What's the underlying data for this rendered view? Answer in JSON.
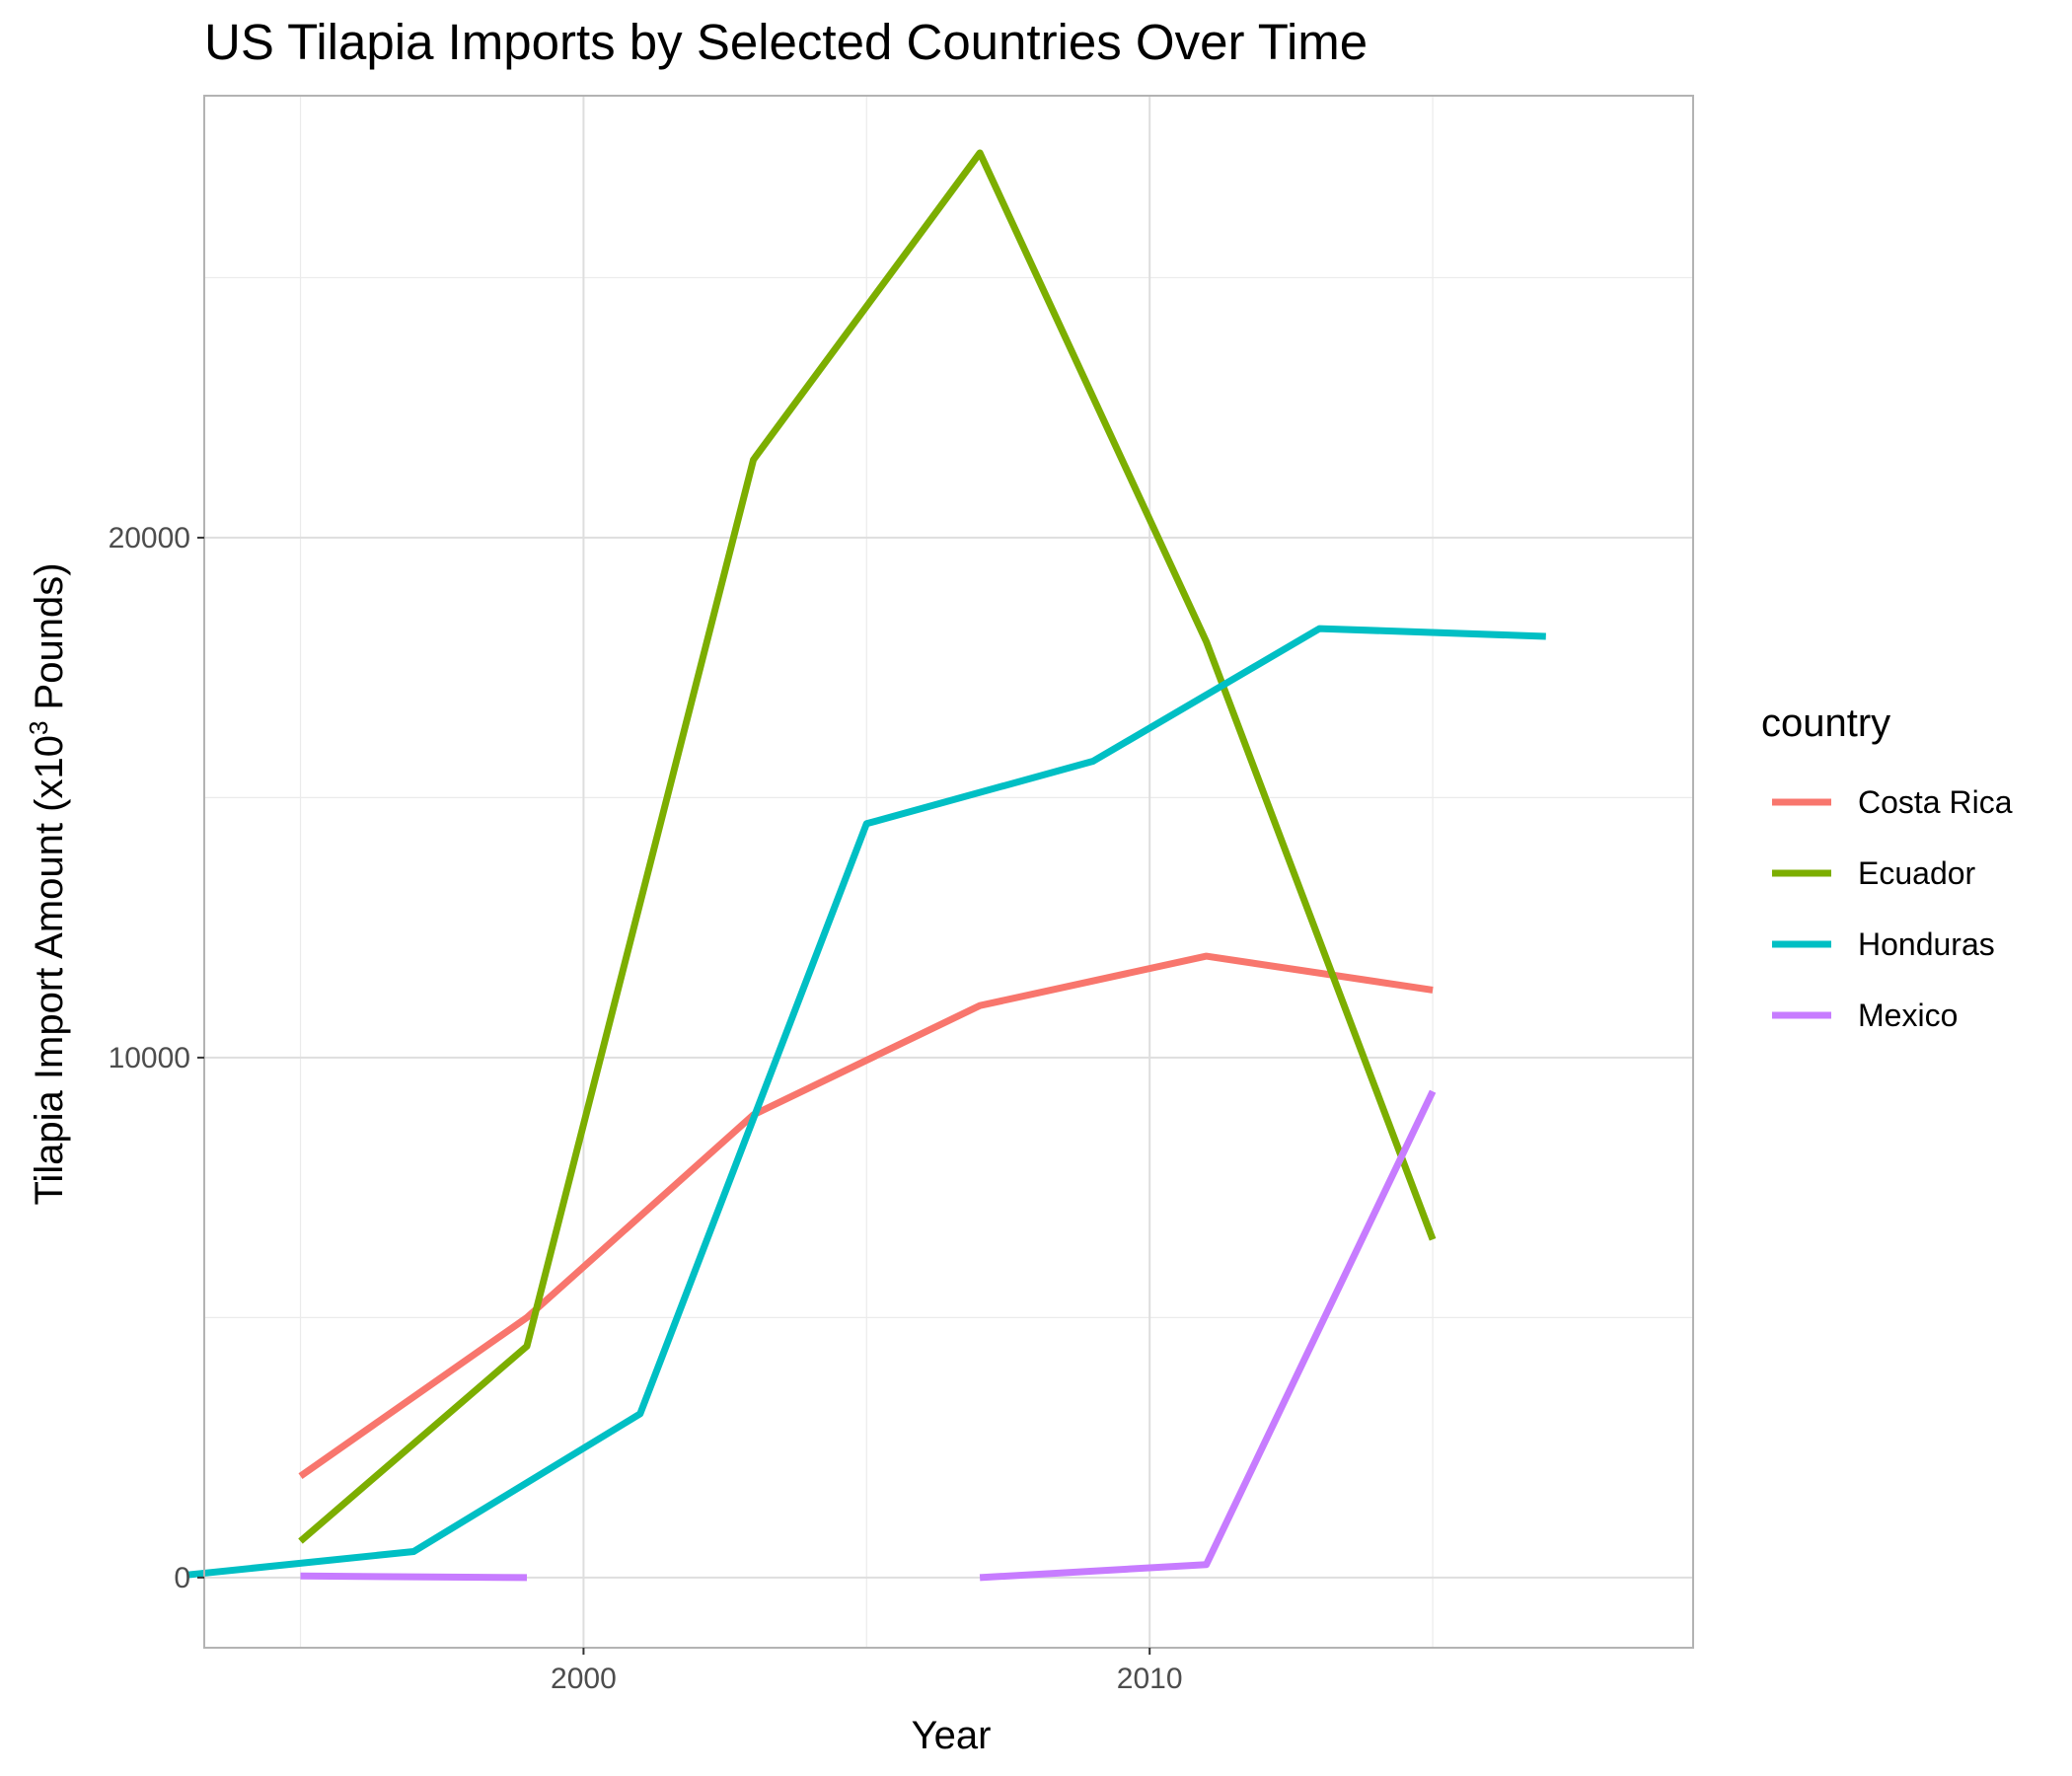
{
  "chart_data": {
    "type": "line",
    "title": "US Tilapia Imports by Selected Countries Over Time",
    "xlabel": "Year",
    "ylabel": {
      "prefix": "Tilapia Import Amount (x10",
      "superscript": "3",
      "suffix": " Pounds)"
    },
    "xlim": [
      1993.3,
      2019.6
    ],
    "ylim": [
      -1350,
      28500
    ],
    "x_ticks": [
      {
        "value": 2000,
        "label": "2000"
      },
      {
        "value": 2010,
        "label": "2010"
      }
    ],
    "x_minor_ticks": [
      1995,
      2005,
      2015
    ],
    "y_ticks": [
      {
        "value": 0,
        "label": "0"
      },
      {
        "value": 10000,
        "label": "10000"
      },
      {
        "value": 20000,
        "label": "20000"
      }
    ],
    "y_minor_ticks": [
      5000,
      15000,
      25000
    ],
    "grid": true,
    "legend": {
      "title": "country",
      "placement": "right"
    },
    "series": [
      {
        "name": "Costa Rica",
        "color": "#F8766D",
        "points": [
          [
            1995,
            1950
          ],
          [
            1999,
            5000
          ],
          [
            2003,
            8900
          ],
          [
            2007,
            11000
          ],
          [
            2011,
            11950
          ],
          [
            2015,
            11300
          ]
        ]
      },
      {
        "name": "Ecuador",
        "color": "#7CAE00",
        "points": [
          [
            1995,
            700
          ],
          [
            1999,
            4450
          ],
          [
            2003,
            21500
          ],
          [
            2007,
            27400
          ],
          [
            2011,
            18000
          ],
          [
            2015,
            6500
          ]
        ]
      },
      {
        "name": "Honduras",
        "color": "#00BFC4",
        "points": [
          [
            1993,
            50
          ],
          [
            1997,
            500
          ],
          [
            2001,
            3150
          ],
          [
            2005,
            14500
          ],
          [
            2009,
            15700
          ],
          [
            2013,
            18250
          ],
          [
            2017,
            18100
          ]
        ]
      },
      {
        "name": "Mexico",
        "color": "#C77CFF",
        "segments": [
          [
            [
              1995,
              30
            ],
            [
              1999,
              0
            ]
          ],
          [
            [
              2007,
              0
            ],
            [
              2011,
              250
            ],
            [
              2015,
              9350
            ]
          ]
        ]
      }
    ]
  }
}
